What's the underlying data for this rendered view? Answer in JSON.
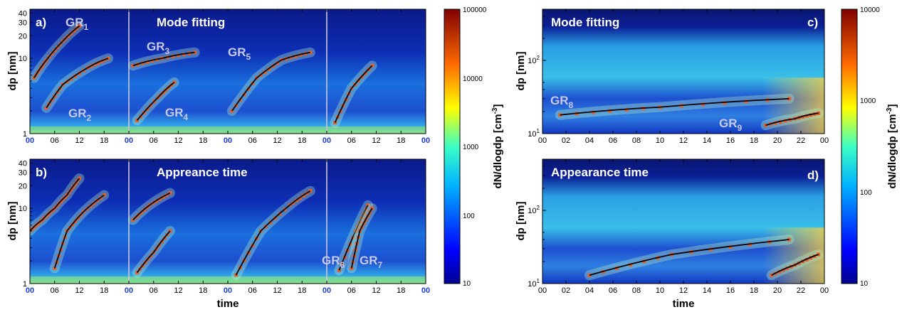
{
  "colors": {
    "bg_low": "#0a1c8f",
    "bg_mid": "#1f7fe0",
    "fit_line": "#000000",
    "markers": "#e2622a",
    "midnight_tick": "#1f3fd6"
  },
  "chart_data": [
    {
      "type": "heatmap",
      "panel_label": "a)",
      "annotation": "Mode fitting",
      "xlabel": "",
      "ylabel": "dp [nm]",
      "yscale": "log",
      "ylim": [
        1,
        45
      ],
      "y_ticks": [
        "1",
        "10",
        "20",
        "30",
        "40"
      ],
      "x_ticks": [
        "00",
        "06",
        "12",
        "18",
        "00",
        "06",
        "12",
        "18",
        "00",
        "06",
        "12",
        "18",
        "00",
        "06",
        "12",
        "18",
        "00"
      ],
      "x_range_hours": [
        0,
        96
      ],
      "fits": [
        {
          "name": "GR",
          "sub": "1",
          "x_hours": [
            1,
            4,
            8,
            12
          ],
          "y": [
            5.5,
            9.5,
            17,
            27
          ]
        },
        {
          "name": "GR",
          "sub": "2",
          "x_hours": [
            4,
            8,
            14,
            19
          ],
          "y": [
            2.2,
            4.5,
            7.5,
            10
          ]
        },
        {
          "name": "GR",
          "sub": "3",
          "x_hours": [
            25,
            32,
            40
          ],
          "y": [
            8,
            10,
            12
          ]
        },
        {
          "name": "GR",
          "sub": "4",
          "x_hours": [
            26,
            31,
            35
          ],
          "y": [
            1.5,
            3,
            4.8
          ]
        },
        {
          "name": "GR",
          "sub": "5",
          "x_hours": [
            49,
            55,
            61,
            68
          ],
          "y": [
            2,
            5.5,
            9.5,
            12
          ]
        },
        {
          "name": "GR",
          "sub": "",
          "x_hours": [
            74,
            78,
            83
          ],
          "y": [
            1.4,
            4,
            8
          ]
        }
      ]
    },
    {
      "type": "heatmap",
      "panel_label": "b)",
      "annotation": "Appreance time",
      "xlabel": "time",
      "ylabel": "dp [nm]",
      "yscale": "log",
      "ylim": [
        1,
        45
      ],
      "y_ticks": [
        "1",
        "10",
        "20",
        "30",
        "40"
      ],
      "x_ticks": [
        "00",
        "06",
        "12",
        "18",
        "00",
        "06",
        "12",
        "18",
        "00",
        "06",
        "12",
        "18",
        "00",
        "06",
        "12",
        "18",
        "00"
      ],
      "x_range_hours": [
        0,
        96
      ],
      "fits": [
        {
          "name": "",
          "sub": "",
          "x_hours": [
            0,
            3,
            6,
            9,
            12
          ],
          "y": [
            5,
            7,
            10,
            15,
            25
          ]
        },
        {
          "name": "",
          "sub": "",
          "x_hours": [
            6,
            9,
            13,
            18
          ],
          "y": [
            1.6,
            5,
            9,
            15
          ]
        },
        {
          "name": "",
          "sub": "",
          "x_hours": [
            25,
            29,
            34
          ],
          "y": [
            7,
            11,
            16
          ]
        },
        {
          "name": "",
          "sub": "",
          "x_hours": [
            26,
            30,
            34
          ],
          "y": [
            1.4,
            2.6,
            5
          ]
        },
        {
          "name": "",
          "sub": "",
          "x_hours": [
            50,
            56,
            63,
            68
          ],
          "y": [
            1.3,
            5,
            11,
            17
          ]
        },
        {
          "name": "GR",
          "sub": "6",
          "x_hours": [
            75,
            79,
            82
          ],
          "y": [
            1.5,
            5,
            11
          ]
        },
        {
          "name": "GR",
          "sub": "7",
          "x_hours": [
            78,
            80,
            83
          ],
          "y": [
            1.6,
            5,
            10
          ]
        }
      ]
    },
    {
      "type": "heatmap",
      "panel_label": "c)",
      "annotation": "Mode fitting",
      "xlabel": "",
      "ylabel": "dp [nm]",
      "yscale": "log",
      "ylim": [
        10,
        500
      ],
      "y_ticks": [
        "10^1",
        "10^2"
      ],
      "x_ticks": [
        "00",
        "02",
        "04",
        "06",
        "08",
        "10",
        "12",
        "14",
        "16",
        "18",
        "20",
        "22",
        "00"
      ],
      "x_range_hours": [
        0,
        24
      ],
      "fits": [
        {
          "name": "GR",
          "sub": "8",
          "x_hours": [
            1.5,
            10,
            21
          ],
          "y": [
            18,
            23,
            30
          ]
        },
        {
          "name": "GR",
          "sub": "9",
          "x_hours": [
            19,
            21.5,
            23.5
          ],
          "y": [
            13,
            16,
            19
          ]
        }
      ]
    },
    {
      "type": "heatmap",
      "panel_label": "d)",
      "annotation": "Appearance time",
      "xlabel": "time",
      "ylabel": "dp [nm]",
      "yscale": "log",
      "ylim": [
        10,
        500
      ],
      "y_ticks": [
        "10^1",
        "10^2"
      ],
      "x_ticks": [
        "00",
        "02",
        "04",
        "06",
        "08",
        "10",
        "12",
        "14",
        "16",
        "18",
        "20",
        "22",
        "00"
      ],
      "x_range_hours": [
        0,
        24
      ],
      "fits": [
        {
          "name": "",
          "sub": "",
          "x_hours": [
            4,
            11,
            21
          ],
          "y": [
            13,
            25,
            40
          ]
        },
        {
          "name": "",
          "sub": "",
          "x_hours": [
            19.5,
            21.5,
            23.5
          ],
          "y": [
            13,
            18,
            25
          ]
        }
      ]
    }
  ],
  "colorbars": [
    {
      "label": "dN/dlogdp [cm",
      "label_sup": "-3",
      "label_end": "]",
      "ticks": [
        "100000",
        "10000",
        "1000",
        "100",
        "10"
      ]
    },
    {
      "label": "dN/dlogdp [cm",
      "label_sup": "-3",
      "label_end": "]",
      "ticks": [
        "10000",
        "1000",
        "100",
        "10"
      ]
    }
  ]
}
